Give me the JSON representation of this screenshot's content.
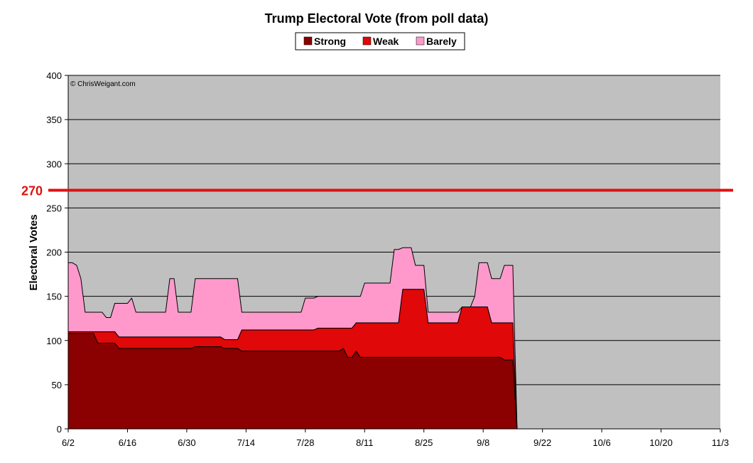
{
  "chart_data": {
    "type": "area",
    "stacked": true,
    "title": "Trump Electoral Vote (from poll data)",
    "ylabel": "Electoral Votes",
    "xlabel": "",
    "copyright": "© ChrisWeigant.com",
    "ylim": [
      0,
      400
    ],
    "yticks": [
      0,
      50,
      100,
      150,
      200,
      250,
      300,
      350,
      400
    ],
    "grid": true,
    "legend_position": "top-center",
    "reference_line": {
      "label": "270",
      "value": 270,
      "color": "#e01010"
    },
    "xlim": [
      0,
      154
    ],
    "xticks": [
      {
        "label": "6/2",
        "day": 0
      },
      {
        "label": "6/16",
        "day": 14
      },
      {
        "label": "6/30",
        "day": 28
      },
      {
        "label": "7/14",
        "day": 42
      },
      {
        "label": "7/28",
        "day": 56
      },
      {
        "label": "8/11",
        "day": 70
      },
      {
        "label": "8/25",
        "day": 84
      },
      {
        "label": "9/8",
        "day": 98
      },
      {
        "label": "9/22",
        "day": 112
      },
      {
        "label": "10/6",
        "day": 126
      },
      {
        "label": "10/20",
        "day": 140
      },
      {
        "label": "11/3",
        "day": 154
      }
    ],
    "x": [
      0,
      1,
      2,
      3,
      4,
      5,
      6,
      7,
      8,
      9,
      10,
      11,
      12,
      13,
      14,
      15,
      16,
      17,
      18,
      19,
      20,
      21,
      22,
      23,
      24,
      25,
      26,
      27,
      28,
      29,
      30,
      31,
      32,
      33,
      34,
      35,
      36,
      37,
      38,
      39,
      40,
      41,
      42,
      43,
      44,
      45,
      46,
      47,
      48,
      49,
      50,
      51,
      52,
      53,
      54,
      55,
      56,
      57,
      58,
      59,
      60,
      61,
      62,
      63,
      64,
      65,
      66,
      67,
      68,
      69,
      70,
      71,
      72,
      73,
      74,
      75,
      76,
      77,
      78,
      79,
      80,
      81,
      82,
      83,
      84,
      85,
      86,
      87,
      88,
      89,
      90,
      91,
      92,
      93,
      94,
      95,
      96,
      97,
      98,
      99,
      100,
      101,
      102,
      103,
      104,
      105,
      106
    ],
    "series": [
      {
        "name": "Strong",
        "color": "#8b0000",
        "values": [
          108,
          108,
          108,
          108,
          108,
          108,
          108,
          97,
          97,
          97,
          97,
          97,
          91,
          91,
          91,
          91,
          91,
          91,
          91,
          91,
          91,
          91,
          91,
          91,
          91,
          91,
          91,
          91,
          91,
          91,
          93,
          93,
          93,
          93,
          93,
          93,
          93,
          91,
          91,
          91,
          91,
          88,
          88,
          88,
          88,
          88,
          88,
          88,
          88,
          88,
          88,
          88,
          88,
          88,
          88,
          88,
          88,
          88,
          88,
          88,
          88,
          88,
          88,
          88,
          88,
          91,
          81,
          81,
          88,
          81,
          81,
          81,
          81,
          81,
          81,
          81,
          81,
          81,
          81,
          81,
          81,
          81,
          81,
          81,
          81,
          81,
          81,
          81,
          81,
          81,
          81,
          81,
          81,
          81,
          81,
          81,
          81,
          81,
          81,
          81,
          81,
          81,
          81,
          78,
          78,
          78,
          0
        ]
      },
      {
        "name": "Weak",
        "color": "#e00808",
        "values": [
          2,
          2,
          2,
          2,
          2,
          2,
          2,
          13,
          13,
          13,
          13,
          13,
          13,
          13,
          13,
          13,
          13,
          13,
          13,
          13,
          13,
          13,
          13,
          13,
          13,
          13,
          13,
          13,
          13,
          13,
          11,
          11,
          11,
          11,
          11,
          11,
          11,
          10,
          10,
          10,
          10,
          24,
          24,
          24,
          24,
          24,
          24,
          24,
          24,
          24,
          24,
          24,
          24,
          24,
          24,
          24,
          24,
          24,
          24,
          26,
          26,
          26,
          26,
          26,
          26,
          23,
          33,
          33,
          32,
          39,
          39,
          39,
          39,
          39,
          39,
          39,
          39,
          39,
          39,
          77,
          77,
          77,
          77,
          77,
          77,
          39,
          39,
          39,
          39,
          39,
          39,
          39,
          39,
          57,
          57,
          57,
          57,
          57,
          57,
          57,
          39,
          39,
          39,
          42,
          42,
          42,
          0
        ]
      },
      {
        "name": "Barely",
        "color": "#ff99cc",
        "values": [
          78,
          78,
          75,
          60,
          22,
          22,
          22,
          22,
          22,
          16,
          16,
          32,
          38,
          38,
          38,
          44,
          28,
          28,
          28,
          28,
          28,
          28,
          28,
          28,
          66,
          66,
          28,
          28,
          28,
          28,
          66,
          66,
          66,
          66,
          66,
          66,
          66,
          69,
          69,
          69,
          69,
          20,
          20,
          20,
          20,
          20,
          20,
          20,
          20,
          20,
          20,
          20,
          20,
          20,
          20,
          20,
          36,
          36,
          36,
          36,
          36,
          36,
          36,
          36,
          36,
          36,
          36,
          36,
          30,
          30,
          45,
          45,
          45,
          45,
          45,
          45,
          45,
          83,
          83,
          47,
          47,
          47,
          27,
          27,
          27,
          12,
          12,
          12,
          12,
          12,
          12,
          12,
          12,
          0,
          0,
          0,
          12,
          50,
          50,
          50,
          50,
          50,
          50,
          65,
          65,
          65,
          0
        ]
      }
    ]
  }
}
